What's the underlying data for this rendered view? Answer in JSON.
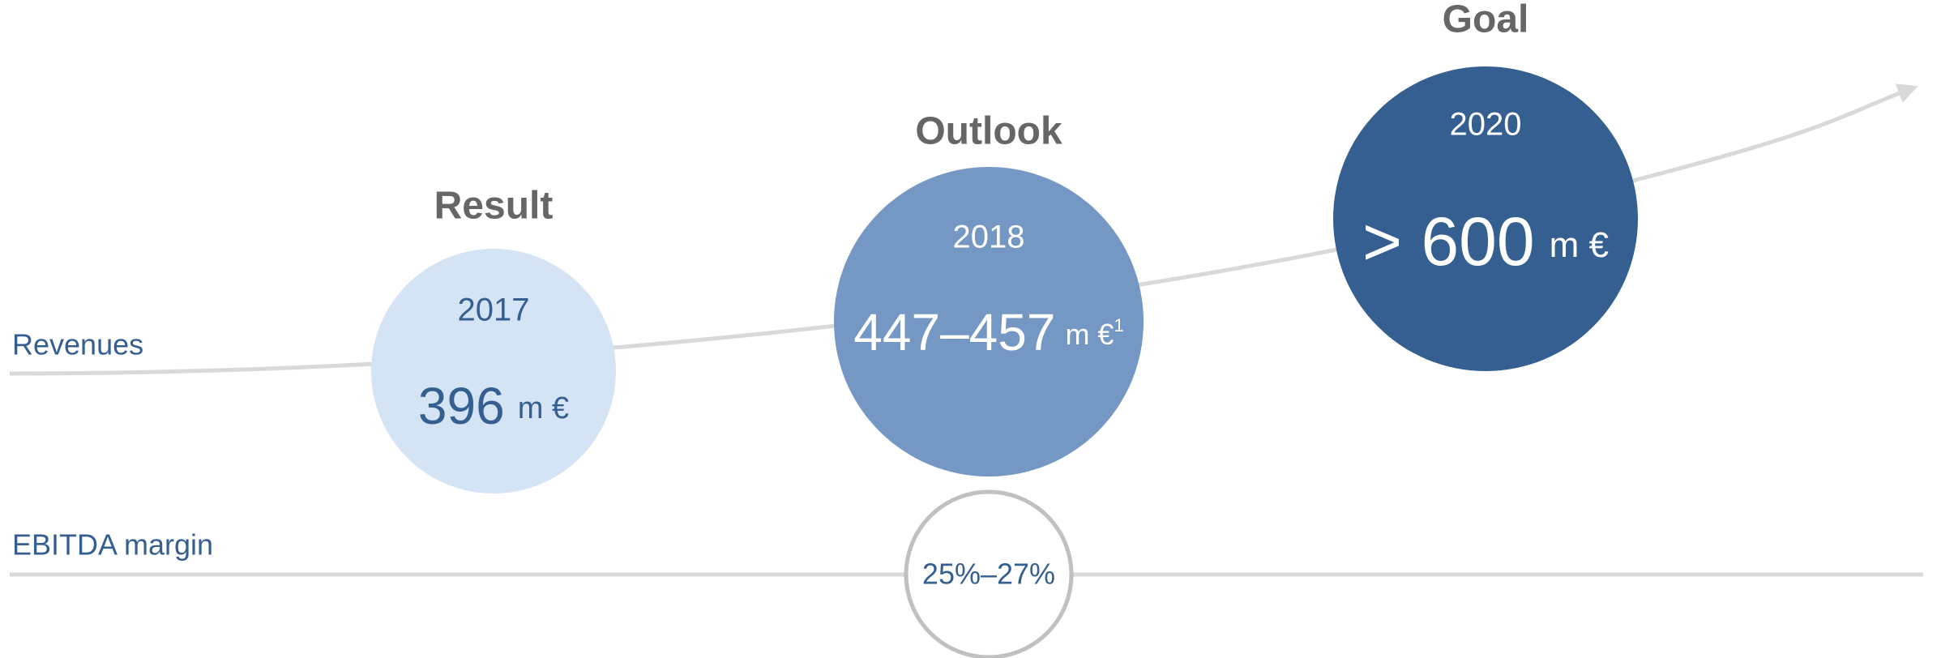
{
  "rows": [
    "Revenues",
    "EBITDA margin"
  ],
  "milestones": [
    {
      "heading": "Result",
      "year": "2017",
      "value": "396",
      "unit": "m €"
    },
    {
      "heading": "Outlook",
      "year": "2018",
      "value": "447–457",
      "unit": "m €",
      "footnote": "1"
    },
    {
      "heading": "Goal",
      "year": "2020",
      "value": "> 600",
      "unit": "m €"
    }
  ],
  "ebitda": "25%–27%"
}
